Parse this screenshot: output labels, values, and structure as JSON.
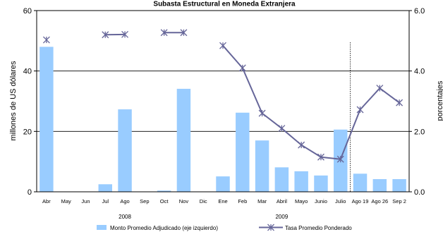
{
  "chart_data": {
    "type": "bar",
    "title": "Subasta Estructural en Moneda Extranjera",
    "ylabel": "millones de US dólares",
    "y2label": "porcentajes",
    "ylim": [
      0,
      60
    ],
    "y2lim": [
      0,
      6
    ],
    "yticks": [
      "0",
      "20",
      "40",
      "60"
    ],
    "y2ticks": [
      "0.0",
      "2.0",
      "4.0",
      "6.0"
    ],
    "categories": [
      "Abr",
      "May",
      "Jun",
      "Jul",
      "Ago",
      "Sep",
      "Oct",
      "Nov",
      "Dic",
      "Ene",
      "Feb",
      "Mar",
      "Abril",
      "Mayo",
      "Junio",
      "Julio",
      "Ago 19",
      "Ago 26",
      "Sep 2"
    ],
    "year_labels": [
      {
        "label": "2008",
        "from": 0,
        "to": 8
      },
      {
        "label": "2009",
        "from": 9,
        "to": 15
      }
    ],
    "divider_after_index": 15,
    "grid": true,
    "legend_position": "bottom",
    "series": [
      {
        "name": "Monto Promedio Adjudicado (eje izquierdo)",
        "type": "bar",
        "axis": "left",
        "color": "#99ccff",
        "values": [
          48,
          0,
          0,
          2.5,
          27.3,
          0,
          0.4,
          34.1,
          0,
          5.1,
          26.2,
          17,
          8.1,
          6.8,
          5.4,
          20.6,
          6,
          4.2,
          4.2
        ]
      },
      {
        "name": "Tasa Promedio Ponderado",
        "type": "line",
        "axis": "right",
        "color": "#666699",
        "values": [
          5.03,
          null,
          null,
          5.2,
          5.21,
          null,
          5.27,
          5.27,
          null,
          4.84,
          4.1,
          2.6,
          2.1,
          1.55,
          1.15,
          1.08,
          2.72,
          3.43,
          2.95
        ]
      }
    ]
  }
}
